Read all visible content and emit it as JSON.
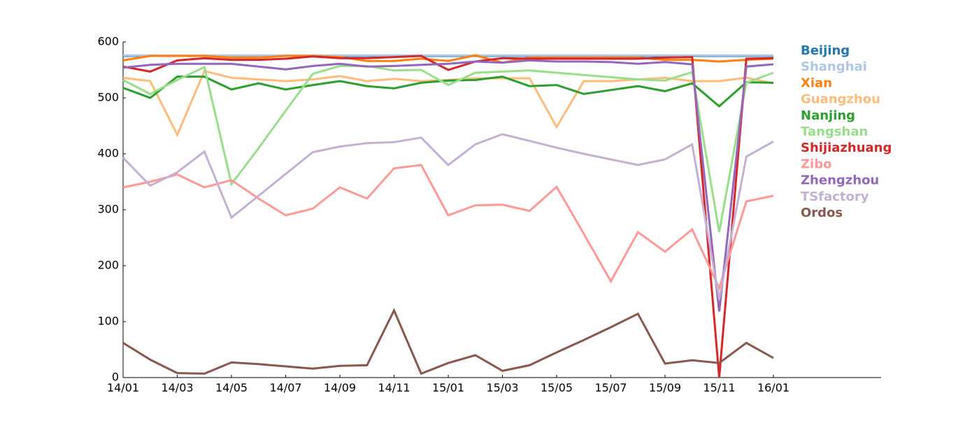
{
  "chart_data": {
    "type": "line",
    "title": "",
    "xlabel": "",
    "ylabel": "",
    "ylim": [
      0,
      600
    ],
    "yticks": [
      0,
      100,
      200,
      300,
      400,
      500,
      600
    ],
    "x": [
      "14/01",
      "14/02",
      "14/03",
      "14/04",
      "14/05",
      "14/06",
      "14/07",
      "14/08",
      "14/09",
      "14/10",
      "14/11",
      "14/12",
      "15/01",
      "15/02",
      "15/03",
      "15/04",
      "15/05",
      "15/06",
      "15/07",
      "15/08",
      "15/09",
      "15/10",
      "15/11",
      "15/12",
      "16/01"
    ],
    "xticks": [
      "14/01",
      "14/03",
      "14/05",
      "14/07",
      "14/09",
      "14/11",
      "15/01",
      "15/03",
      "15/05",
      "15/07",
      "15/09",
      "15/11",
      "16/01"
    ],
    "grid": false,
    "legend_position": "right",
    "series": [
      {
        "name": "Beijing",
        "color": "#1f77b4",
        "values": [
          575,
          575,
          575,
          575,
          575,
          575,
          575,
          575,
          575,
          575,
          575,
          575,
          575,
          575,
          575,
          575,
          575,
          575,
          575,
          575,
          575,
          575,
          575,
          575,
          575
        ]
      },
      {
        "name": "Shanghai",
        "color": "#aec7e8",
        "values": [
          576,
          576,
          576,
          576,
          576,
          576,
          576,
          576,
          576,
          576,
          576,
          576,
          576,
          576,
          576,
          576,
          576,
          576,
          576,
          576,
          576,
          576,
          576,
          576,
          576
        ]
      },
      {
        "name": "Xian",
        "color": "#ff7f0e",
        "values": [
          567,
          575,
          575,
          575,
          572,
          572,
          575,
          575,
          573,
          566,
          566,
          570,
          566,
          576,
          563,
          572,
          572,
          572,
          572,
          572,
          568,
          568,
          565,
          568,
          570
        ]
      },
      {
        "name": "Guangzhou",
        "color": "#ffbb78",
        "values": [
          536,
          530,
          434,
          548,
          536,
          533,
          530,
          533,
          539,
          530,
          534,
          530,
          532,
          535,
          535,
          535,
          448,
          530,
          530,
          533,
          536,
          530,
          530,
          536,
          526
        ]
      },
      {
        "name": "Nanjing",
        "color": "#2ca02c",
        "values": [
          518,
          500,
          538,
          538,
          515,
          526,
          515,
          523,
          530,
          521,
          517,
          527,
          531,
          532,
          538,
          521,
          523,
          507,
          514,
          521,
          512,
          526,
          485,
          528,
          527
        ]
      },
      {
        "name": "Tangshan",
        "color": "#98df8a",
        "values": [
          532,
          507,
          532,
          555,
          346,
          410,
          477,
          543,
          557,
          557,
          549,
          550,
          523,
          545,
          547,
          549,
          545,
          541,
          537,
          533,
          531,
          546,
          260,
          527,
          545
        ]
      },
      {
        "name": "Shijiazhuang",
        "color": "#d62728",
        "values": [
          556,
          547,
          567,
          571,
          568,
          568,
          570,
          574,
          571,
          571,
          573,
          575,
          550,
          565,
          571,
          570,
          570,
          570,
          570,
          570,
          572,
          573,
          0,
          570,
          571
        ]
      },
      {
        "name": "Zibo",
        "color": "#ff9896",
        "values": [
          340,
          350,
          363,
          340,
          353,
          320,
          290,
          302,
          340,
          320,
          374,
          380,
          290,
          308,
          309,
          298,
          341,
          257,
          172,
          260,
          225,
          265,
          160,
          315,
          325
        ]
      },
      {
        "name": "Zhengzhou",
        "color": "#9467bd",
        "values": [
          554,
          559,
          561,
          561,
          561,
          556,
          551,
          557,
          561,
          556,
          557,
          559,
          561,
          565,
          563,
          567,
          565,
          565,
          564,
          561,
          564,
          560,
          118,
          556,
          560
        ]
      },
      {
        "name": "TSfactory",
        "color": "#c5b0d5",
        "values": [
          393,
          343,
          367,
          404,
          286,
          325,
          364,
          403,
          413,
          419,
          421,
          429,
          380,
          417,
          435,
          423,
          411,
          400,
          390,
          380,
          390,
          417,
          140,
          395,
          422
        ]
      },
      {
        "name": "Ordos",
        "color": "#8c564b",
        "values": [
          62,
          32,
          8,
          7,
          27,
          24,
          20,
          16,
          21,
          22,
          120,
          7,
          26,
          40,
          12,
          22,
          45,
          67,
          90,
          114,
          25,
          31,
          26,
          62,
          35
        ]
      }
    ]
  }
}
